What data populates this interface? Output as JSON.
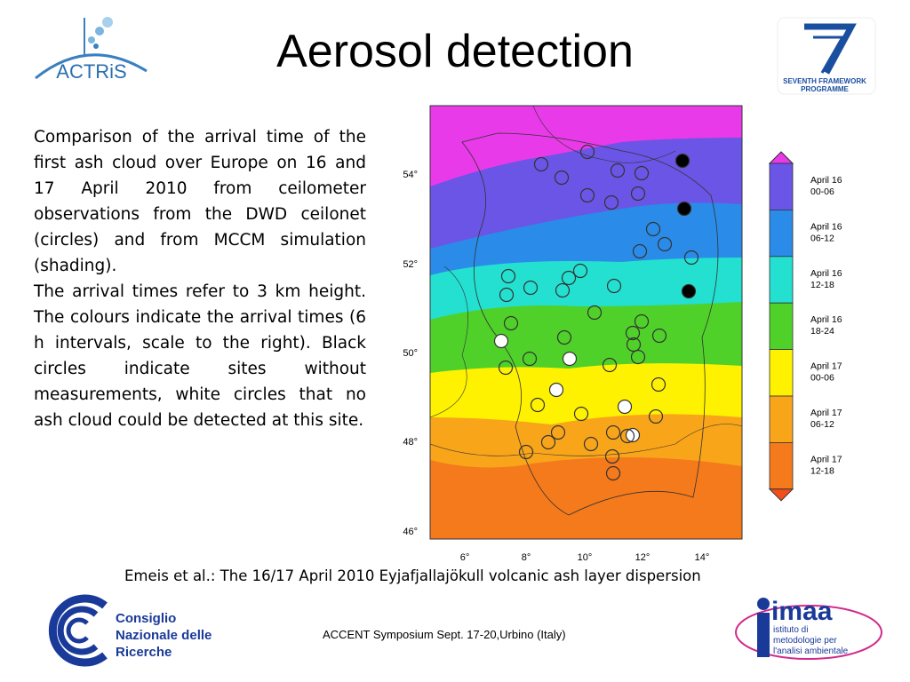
{
  "header": {
    "title": "Aerosol detection"
  },
  "logos": {
    "actris": "ACTRiS",
    "fp7": [
      "SEVENTH FRAMEWORK",
      "PROGRAMME"
    ],
    "cnr": [
      "Consiglio",
      "Nazionale delle",
      "Ricerche"
    ],
    "imaa": [
      "imaa",
      "istituto di",
      "metodologie per",
      "l'analisi ambientale"
    ]
  },
  "body": {
    "paragraphs": [
      "Comparison of the arrival time of the first ash cloud over Europe on 16 and 17 April 2010 from ceilometer observations from the DWD ceilonet (circles) and from MCCM simulation (shading).",
      "The arrival times refer to 3 km height. The colours indicate the arrival times (6 h intervals, scale to the right). Black circles indicate sites without measurements, white circles that no ash cloud could be detected at this site."
    ]
  },
  "map": {
    "lat_labels": [
      "54°",
      "52°",
      "50°",
      "48°",
      "46°"
    ],
    "lon_labels": [
      "6°",
      "8°",
      "10°",
      "12°",
      "14°"
    ],
    "legend": [
      [
        "April 16",
        "00-06"
      ],
      [
        "April 16",
        "06-12"
      ],
      [
        "April 16",
        "12-18"
      ],
      [
        "April 16",
        "18-24"
      ],
      [
        "April 17",
        "00-06"
      ],
      [
        "April 17",
        "06-12"
      ],
      [
        "April 17",
        "12-18"
      ]
    ]
  },
  "caption": "Emeis et al.: The 16/17 April 2010 Eyjafjallajökull volcanic ash layer dispersion",
  "footer": "ACCENT Symposium Sept. 17-20,Urbino (Italy)"
}
